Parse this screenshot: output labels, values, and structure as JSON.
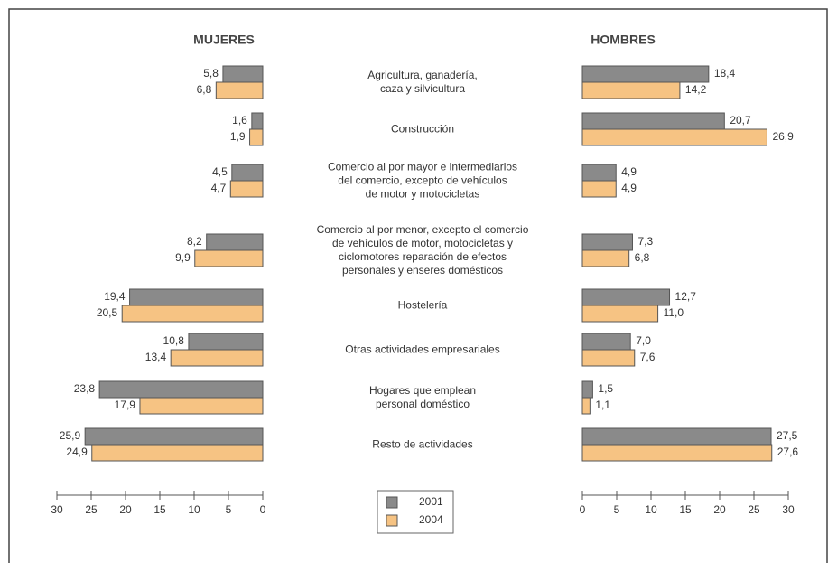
{
  "chart_data": {
    "type": "bar",
    "categories": [
      "Agricultura, ganadería,\ncaza y silvicultura",
      "Construcción",
      "Comercio al por mayor e intermediarios\ndel comercio, excepto de vehículos\nde motor y motocicletas",
      "Comercio al por menor, excepto el comercio\nde vehículos de motor, motocicletas y\nciclomotores reparación de efectos\npersonales y enseres domésticos",
      "Hostelería",
      "Otras actividades empresariales",
      "Hogares que emplean\npersonal doméstico",
      "Resto de actividades"
    ],
    "series": [
      {
        "name": "2001",
        "color": "#8a8a8a"
      },
      {
        "name": "2004",
        "color": "#f6c383"
      }
    ],
    "panels": [
      {
        "title": "MUJERES",
        "direction": "left",
        "xlim": [
          0,
          30
        ],
        "xticks": [
          30,
          25,
          20,
          15,
          10,
          5,
          0
        ],
        "values": [
          [
            5.8,
            1.6,
            4.5,
            8.2,
            19.4,
            10.8,
            23.8,
            25.9
          ],
          [
            6.8,
            1.9,
            4.7,
            9.9,
            20.5,
            13.4,
            17.9,
            24.9
          ]
        ],
        "value_labels": [
          [
            "5,8",
            "1,6",
            "4,5",
            "8,2",
            "19,4",
            "10,8",
            "23,8",
            "25,9"
          ],
          [
            "6,8",
            "1,9",
            "4,7",
            "9,9",
            "20,5",
            "13,4",
            "17,9",
            "24,9"
          ]
        ]
      },
      {
        "title": "HOMBRES",
        "direction": "right",
        "xlim": [
          0,
          30
        ],
        "xticks": [
          0,
          5,
          10,
          15,
          20,
          25,
          30
        ],
        "values": [
          [
            18.4,
            20.7,
            4.9,
            7.3,
            12.7,
            7.0,
            1.5,
            27.5
          ],
          [
            14.2,
            26.9,
            4.9,
            6.8,
            11.0,
            7.6,
            1.1,
            27.6
          ]
        ],
        "value_labels": [
          [
            "18,4",
            "20,7",
            "4,9",
            "7,3",
            "12,7",
            "7,0",
            "1,5",
            "27,5"
          ],
          [
            "14,2",
            "26,9",
            "4,9",
            "6,8",
            "11,0",
            "7,6",
            "1,1",
            "27,6"
          ]
        ]
      }
    ]
  }
}
